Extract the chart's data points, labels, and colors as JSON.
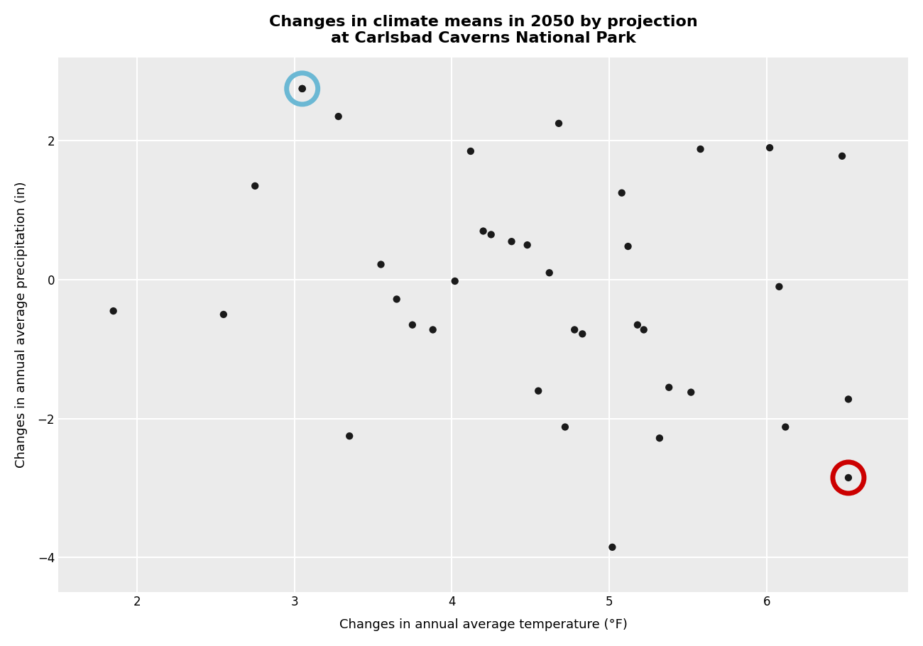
{
  "title": "Changes in climate means in 2050 by projection\nat Carlsbad Caverns National Park",
  "xlabel": "Changes in annual average temperature (°F)",
  "ylabel": "Changes in annual average precipitation (in)",
  "xlim": [
    1.5,
    6.9
  ],
  "ylim": [
    -4.5,
    3.2
  ],
  "xticks": [
    2,
    3,
    4,
    5,
    6
  ],
  "yticks": [
    -4,
    -2,
    0,
    2
  ],
  "background_color": "#ebebeb",
  "grid_color": "#ffffff",
  "points": [
    [
      1.85,
      -0.45
    ],
    [
      2.55,
      -0.5
    ],
    [
      2.75,
      1.35
    ],
    [
      3.05,
      2.75
    ],
    [
      3.28,
      2.35
    ],
    [
      3.35,
      -2.25
    ],
    [
      3.55,
      0.22
    ],
    [
      3.65,
      -0.28
    ],
    [
      3.75,
      -0.65
    ],
    [
      3.88,
      -0.72
    ],
    [
      4.02,
      -0.02
    ],
    [
      4.12,
      1.85
    ],
    [
      4.2,
      0.7
    ],
    [
      4.25,
      0.65
    ],
    [
      4.38,
      0.55
    ],
    [
      4.48,
      0.5
    ],
    [
      4.55,
      -1.6
    ],
    [
      4.62,
      0.1
    ],
    [
      4.68,
      2.25
    ],
    [
      4.72,
      -2.12
    ],
    [
      4.78,
      -0.72
    ],
    [
      4.83,
      -0.78
    ],
    [
      5.02,
      -3.85
    ],
    [
      5.08,
      1.25
    ],
    [
      5.12,
      0.48
    ],
    [
      5.18,
      -0.65
    ],
    [
      5.22,
      -0.72
    ],
    [
      5.32,
      -2.28
    ],
    [
      5.38,
      -1.55
    ],
    [
      5.52,
      -1.62
    ],
    [
      5.58,
      1.88
    ],
    [
      6.02,
      1.9
    ],
    [
      6.08,
      -0.1
    ],
    [
      6.12,
      -2.12
    ],
    [
      6.48,
      1.78
    ],
    [
      6.52,
      -1.72
    ]
  ],
  "blue_circle_point": [
    3.05,
    2.75
  ],
  "red_circle_point": [
    6.52,
    -2.85
  ],
  "blue_color": "#6BB8D4",
  "red_color": "#CC0000",
  "point_color": "#1a1a1a",
  "point_size": 55,
  "title_fontsize": 16,
  "label_fontsize": 13,
  "tick_fontsize": 12
}
